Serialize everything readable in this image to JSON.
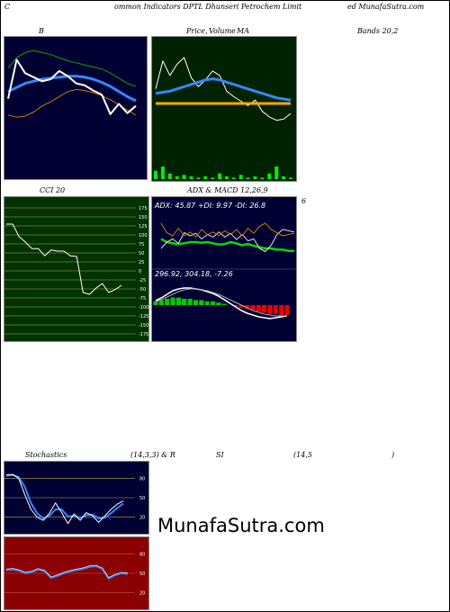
{
  "header": {
    "left": "C",
    "center": "ommon  Indicators DPTL  Dhunseri  Petrochem Limit",
    "right": "ed MunafaSutra.com"
  },
  "titles": {
    "bollinger": "B",
    "price_volume": "Price,",
    "price_volume_overlay": "Volume",
    "price_volume_ma": "MA",
    "bands": "Bands 20,2",
    "cci": "CCI 20",
    "adx_macd": "ADX  & MACD 12,26,9",
    "far_right_num": "6",
    "stoch_a": "Stochastics",
    "stoch_b": "(14,3,3) & R",
    "rsi_a": "SI",
    "rsi_b": "(14,5",
    "rsi_c": ")"
  },
  "adx_text": "ADX: 45.87  +DI: 9.97 -DI: 26.8",
  "macd_text": "296.92,  304.18,  -7.26",
  "watermark": "MunafaSutra.com",
  "colors": {
    "dark_panel": "#000033",
    "price_panel": "#002200",
    "cci_panel": "#003300",
    "rsi_panel": "#8b0000"
  },
  "chart_data": [
    {
      "name": "bollinger",
      "type": "line",
      "series": [
        {
          "role": "upper",
          "color": "#00aa00",
          "values": [
            335,
            345,
            350,
            352,
            350,
            348,
            345,
            342,
            340,
            338,
            336,
            334,
            330,
            325,
            320,
            317
          ]
        },
        {
          "role": "middle",
          "color": "#3388ff",
          "values": [
            312,
            316,
            320,
            322,
            324,
            325,
            326,
            327,
            327,
            326,
            324,
            321,
            317,
            312,
            307,
            303
          ]
        },
        {
          "role": "lower",
          "color": "#cc7700",
          "values": [
            289,
            287,
            288,
            292,
            298,
            302,
            307,
            312,
            314,
            313,
            311,
            308,
            304,
            299,
            294,
            289
          ]
        },
        {
          "role": "price",
          "color": "#ffffff",
          "values": [
            305,
            343,
            330,
            326,
            322,
            324,
            332,
            327,
            320,
            318,
            313,
            309,
            290,
            300,
            291,
            298
          ]
        }
      ]
    },
    {
      "name": "price_volume",
      "type": "line",
      "series": [
        {
          "role": "price",
          "color": "#ffffff",
          "values": [
            310,
            335,
            322,
            332,
            338,
            320,
            312,
            318,
            326,
            322,
            308,
            303,
            299,
            295,
            300,
            290,
            285,
            282,
            283,
            288
          ]
        },
        {
          "role": "ma_blue",
          "color": "#3388ff",
          "values": [
            306,
            307,
            308,
            310,
            312,
            314,
            316,
            318,
            319,
            318,
            316,
            314,
            312,
            310,
            308,
            306,
            304,
            302,
            301,
            300
          ]
        },
        {
          "role": "ma_orange",
          "color": "#ffaa00",
          "values": [
            297,
            297,
            297,
            297,
            297,
            297,
            297,
            297,
            297,
            297,
            297,
            297,
            297,
            297,
            297,
            297,
            297,
            297,
            297,
            297
          ]
        }
      ],
      "volume": [
        6,
        9,
        4,
        2,
        3,
        2,
        1,
        2,
        1,
        4,
        2,
        1,
        3,
        1,
        2,
        1,
        4,
        9,
        2,
        1
      ]
    },
    {
      "name": "cci",
      "type": "line",
      "ylim": [
        -175,
        175
      ],
      "ticks": [
        175,
        150,
        125,
        100,
        75,
        50,
        25,
        0,
        -25,
        -50,
        -75,
        -100,
        -125,
        -150,
        -175
      ],
      "values": [
        130,
        130,
        95,
        80,
        62,
        62,
        42,
        58,
        55,
        55,
        42,
        40,
        -60,
        -65,
        -48,
        -35,
        -60,
        -52,
        -40
      ]
    },
    {
      "name": "adx_macd",
      "type": "line",
      "adx": {
        "adx": 45.87,
        "plus_di": 9.97,
        "minus_di": 26.8
      },
      "macd": {
        "macd": 296.92,
        "signal": 304.18,
        "histogram": -7.26
      }
    },
    {
      "name": "stochastics",
      "type": "line",
      "params": "14,3,3",
      "ylim": [
        0,
        100
      ],
      "ticks": [
        80,
        50,
        20
      ],
      "k": [
        85,
        86,
        80,
        55,
        32,
        20,
        15,
        26,
        42,
        27,
        10,
        25,
        15,
        27,
        22,
        12,
        22,
        32,
        40,
        45
      ],
      "d": [
        84,
        85,
        82,
        67,
        42,
        26,
        18,
        22,
        32,
        32,
        21,
        22,
        19,
        23,
        24,
        18,
        19,
        26,
        34,
        41
      ]
    },
    {
      "name": "rsi",
      "type": "line",
      "params": "14",
      "ylim": [
        0,
        100
      ],
      "ticks": [
        80,
        50,
        20
      ],
      "values": [
        55,
        56,
        54,
        50,
        52,
        56,
        53,
        43,
        46,
        50,
        53,
        55,
        57,
        60,
        61,
        57,
        42,
        47,
        50,
        49
      ]
    }
  ]
}
